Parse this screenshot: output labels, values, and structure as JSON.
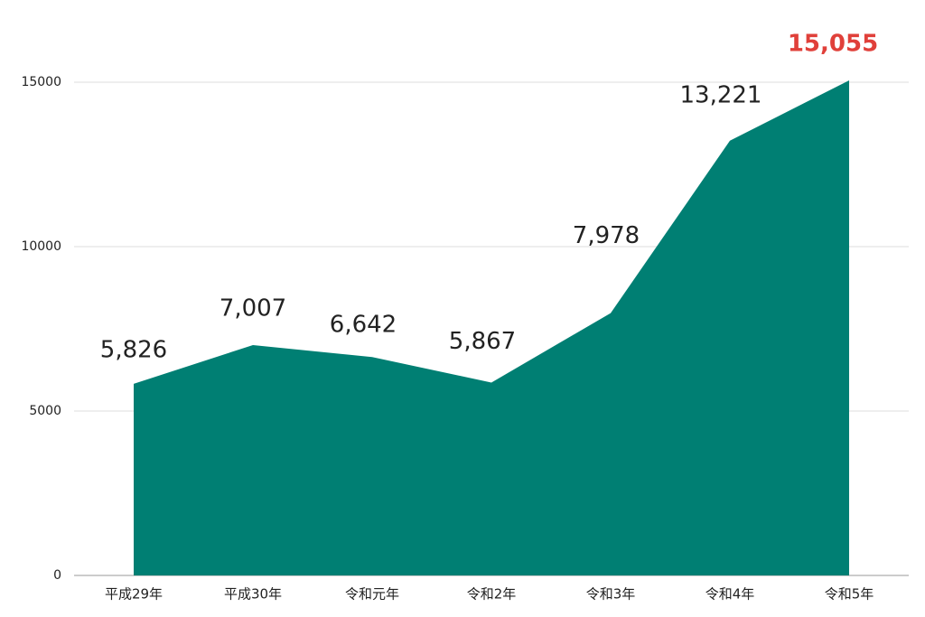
{
  "chart_data": {
    "type": "area",
    "categories": [
      "平成29年",
      "平成30年",
      "令和元年",
      "令和2年",
      "令和3年",
      "令和4年",
      "令和5年"
    ],
    "values": [
      5826,
      7007,
      6642,
      5867,
      7978,
      13221,
      15055
    ],
    "value_labels": [
      "5,826",
      "7,007",
      "6,642",
      "5,867",
      "7,978",
      "13,221",
      "15,055"
    ],
    "color": "#007f73",
    "highlight": {
      "index": 6,
      "color": "#e0403a"
    },
    "ylim": [
      0,
      15000
    ],
    "yticks": [
      0,
      5000,
      10000,
      15000
    ],
    "grid": true
  }
}
